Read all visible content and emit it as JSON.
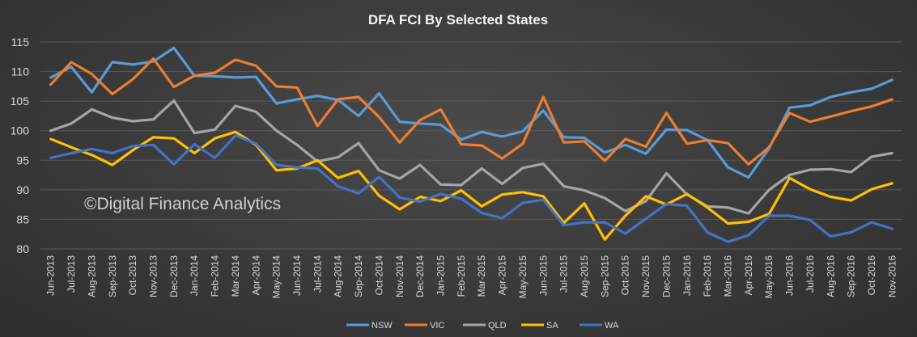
{
  "chart_data": {
    "type": "line",
    "title": "DFA FCI By Selected States",
    "watermark": "©Digital Finance Analytics",
    "xlabel": "",
    "ylabel": "",
    "ylim": [
      80,
      115
    ],
    "yticks": [
      80,
      85,
      90,
      95,
      100,
      105,
      110,
      115
    ],
    "grid": true,
    "legend_position": "bottom",
    "categories": [
      "Jun-2013",
      "Jul-2013",
      "Aug-2013",
      "Sep-2013",
      "Oct-2013",
      "Nov-2013",
      "Dec-2013",
      "Jan-2014",
      "Feb-2014",
      "Mar-2014",
      "Apr-2014",
      "May-2014",
      "Jun-2014",
      "Jul-2014",
      "Aug-2014",
      "Sep-2014",
      "Oct-2014",
      "Nov-2014",
      "Dec-2014",
      "Jan-2015",
      "Feb-2015",
      "Mar-2015",
      "Apr-2015",
      "May-2015",
      "Jun-2015",
      "Jul-2015",
      "Aug-2015",
      "Sep-2015",
      "Oct-2015",
      "Nov-2015",
      "Dec-2015",
      "Jan-2016",
      "Feb-2016",
      "Mar-2016",
      "Apr-2016",
      "May-2016",
      "Jun-2016",
      "Jul-2016",
      "Aug-2016",
      "Sep-2016",
      "Oct-2016",
      "Nov-2016"
    ],
    "series": [
      {
        "name": "NSW",
        "color": "#5b9bd5",
        "values": [
          109.0,
          110.8,
          106.5,
          111.6,
          111.2,
          111.7,
          114.0,
          109.3,
          109.2,
          109.0,
          109.1,
          104.6,
          105.3,
          105.9,
          105.2,
          102.5,
          106.3,
          101.5,
          101.2,
          101.0,
          98.5,
          99.8,
          99.0,
          99.9,
          103.4,
          98.9,
          98.8,
          96.3,
          97.6,
          96.1,
          100.2,
          100.1,
          98.4,
          93.8,
          92.1,
          97.0,
          103.9,
          104.3,
          105.7,
          106.5,
          107.1,
          108.6
        ]
      },
      {
        "name": "VIC",
        "color": "#ed7d31",
        "values": [
          107.8,
          111.6,
          109.6,
          106.2,
          108.7,
          112.2,
          107.4,
          109.3,
          109.8,
          112.0,
          111.0,
          107.5,
          107.3,
          100.8,
          105.3,
          105.7,
          102.3,
          98.0,
          101.8,
          103.6,
          97.7,
          97.5,
          95.3,
          97.8,
          105.7,
          98.0,
          98.2,
          94.9,
          98.6,
          97.3,
          103.0,
          97.8,
          98.4,
          97.9,
          94.3,
          97.2,
          103.0,
          101.5,
          102.4,
          103.3,
          104.1,
          105.3
        ]
      },
      {
        "name": "QLD",
        "color": "#a5a5a5",
        "values": [
          100.0,
          101.2,
          103.6,
          102.2,
          101.6,
          101.9,
          105.1,
          99.6,
          100.2,
          104.2,
          103.2,
          100.0,
          97.6,
          94.8,
          95.5,
          97.9,
          93.3,
          91.9,
          94.2,
          90.9,
          90.8,
          93.6,
          91.0,
          93.7,
          94.4,
          90.6,
          89.9,
          88.6,
          86.4,
          88.1,
          92.8,
          89.2,
          87.2,
          87.0,
          86.0,
          90.0,
          92.5,
          93.4,
          93.5,
          93.0,
          95.6,
          96.2
        ]
      },
      {
        "name": "SA",
        "color": "#ffc000",
        "values": [
          98.6,
          97.2,
          95.9,
          94.2,
          96.7,
          98.9,
          98.7,
          96.2,
          98.7,
          99.8,
          97.6,
          93.3,
          93.6,
          95.0,
          92.0,
          93.2,
          89.0,
          86.7,
          88.8,
          88.1,
          89.9,
          87.2,
          89.2,
          89.6,
          88.9,
          84.4,
          87.7,
          81.6,
          85.6,
          88.9,
          87.5,
          89.3,
          87.0,
          84.3,
          84.6,
          85.9,
          92.0,
          90.1,
          88.8,
          88.2,
          90.1,
          91.1
        ]
      },
      {
        "name": "WA",
        "color": "#4472c4",
        "values": [
          95.4,
          96.2,
          96.9,
          96.2,
          97.4,
          97.6,
          94.3,
          97.7,
          95.4,
          99.2,
          97.8,
          94.2,
          93.8,
          93.6,
          90.6,
          89.4,
          92.2,
          88.7,
          88.0,
          89.3,
          88.5,
          86.1,
          85.2,
          87.8,
          88.3,
          84.0,
          84.5,
          84.5,
          82.6,
          85.1,
          87.6,
          87.3,
          82.8,
          81.2,
          82.3,
          85.6,
          85.6,
          84.9,
          82.1,
          82.8,
          84.5,
          83.4
        ]
      }
    ]
  }
}
